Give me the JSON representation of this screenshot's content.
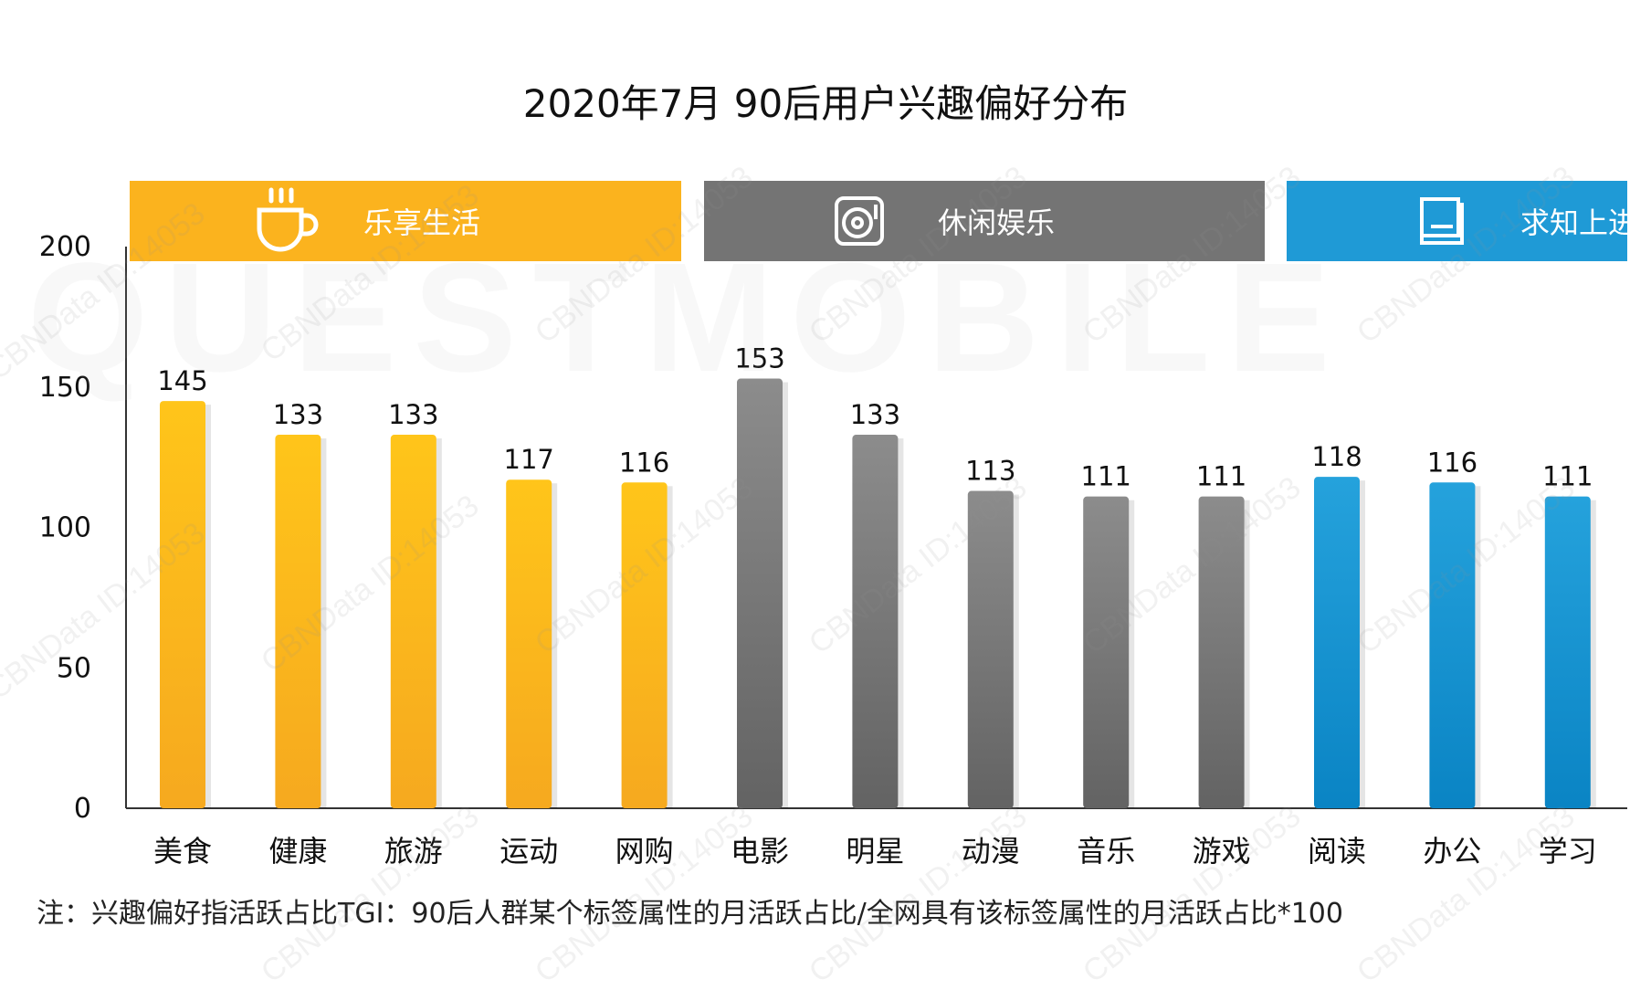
{
  "chart_data": {
    "type": "bar",
    "title": "2020年7月 90后用户兴趣偏好分布",
    "categories": [
      "美食",
      "健康",
      "旅游",
      "运动",
      "网购",
      "电影",
      "明星",
      "动漫",
      "音乐",
      "游戏",
      "阅读",
      "办公",
      "学习"
    ],
    "values": [
      145,
      133,
      133,
      117,
      116,
      153,
      133,
      113,
      111,
      111,
      118,
      116,
      111
    ],
    "groups": [
      {
        "label": "乐享生活",
        "icon": "coffee-cup-icon",
        "color": "#FBB31E",
        "bar_top": "#FFC51A",
        "bar_bottom": "#F6A91F",
        "members": [
          0,
          1,
          2,
          3,
          4
        ]
      },
      {
        "label": "休闲娱乐",
        "icon": "vinyl-record-icon",
        "color": "#747474",
        "bar_top": "#8C8C8C",
        "bar_bottom": "#636363",
        "members": [
          5,
          6,
          7,
          8,
          9
        ]
      },
      {
        "label": "求知上进",
        "icon": "book-icon",
        "color": "#1F9AD6",
        "bar_top": "#25A2DC",
        "bar_bottom": "#0A84C4",
        "members": [
          10,
          11,
          12
        ]
      }
    ],
    "ylim": [
      0,
      200
    ],
    "yticks": [
      0,
      50,
      100,
      150,
      200
    ],
    "xlabel": "",
    "ylabel": ""
  },
  "note": "注：兴趣偏好指活跃占比TGI：90后人群某个标签属性的月活跃占比/全网具有该标签属性的月活跃占比*100"
}
